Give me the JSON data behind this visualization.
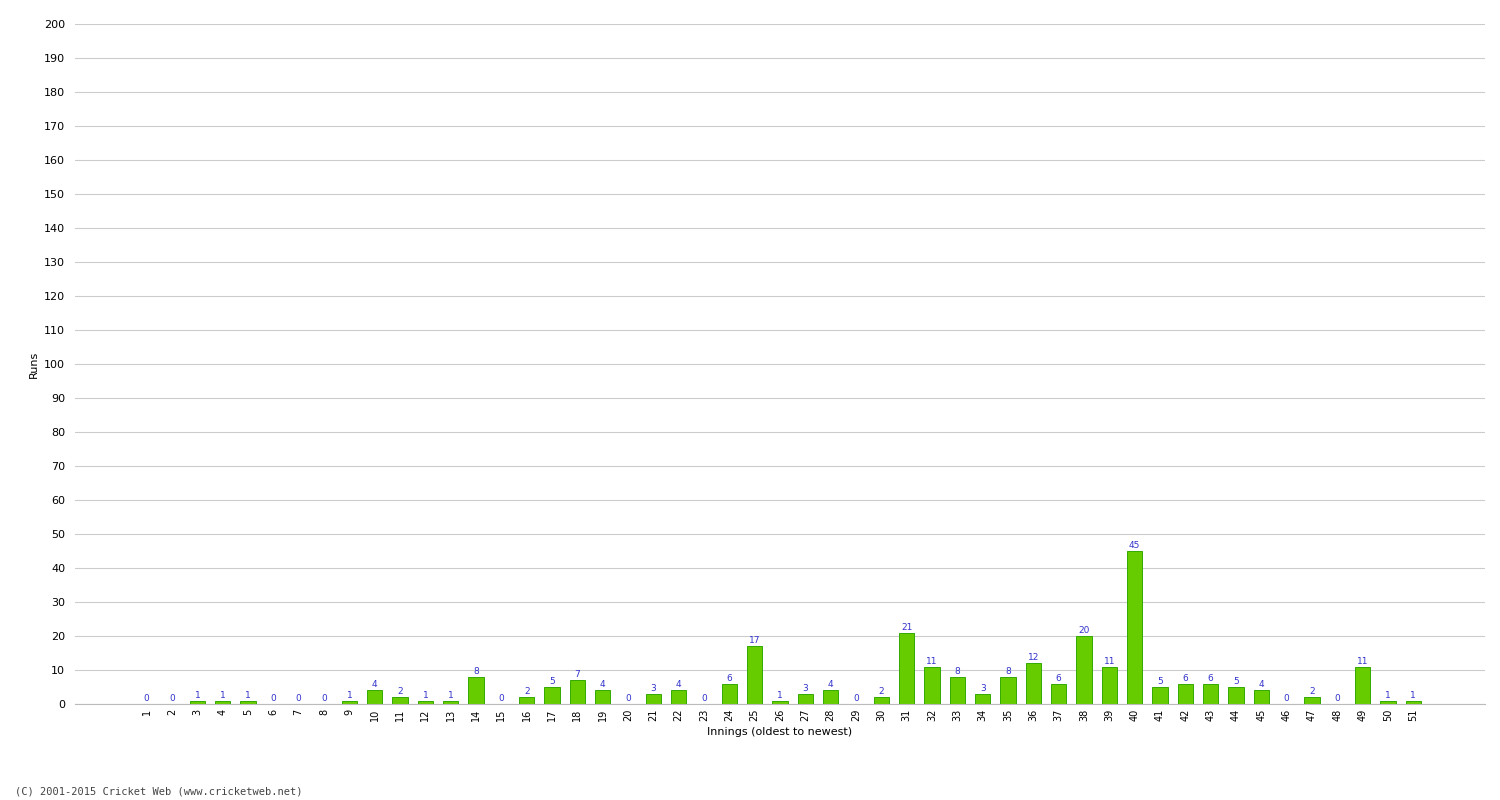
{
  "innings_labels": [
    "1",
    "2",
    "3",
    "4",
    "5",
    "6",
    "7",
    "8",
    "9",
    "10",
    "11",
    "12",
    "13",
    "14",
    "15",
    "16",
    "17",
    "18",
    "19",
    "20",
    "21",
    "22",
    "23",
    "24",
    "25",
    "26",
    "27",
    "28",
    "29",
    "30",
    "31",
    "32",
    "33",
    "34",
    "35",
    "36",
    "37",
    "38",
    "39",
    "40",
    "41",
    "42",
    "43",
    "44",
    "45",
    "46",
    "47",
    "48",
    "49",
    "50",
    "51"
  ],
  "values": [
    0,
    0,
    1,
    1,
    1,
    0,
    0,
    0,
    1,
    4,
    2,
    1,
    1,
    8,
    0,
    2,
    5,
    7,
    4,
    0,
    3,
    4,
    0,
    6,
    17,
    1,
    3,
    4,
    0,
    2,
    21,
    11,
    8,
    3,
    8,
    12,
    6,
    20,
    11,
    45,
    5,
    6,
    6,
    5,
    4,
    0,
    2,
    0,
    11,
    1,
    1
  ],
  "bar_color": "#66cc00",
  "bar_edge_color": "#33aa00",
  "ylabel": "Runs",
  "xlabel": "Innings (oldest to newest)",
  "ylim": [
    0,
    200
  ],
  "yticks": [
    0,
    10,
    20,
    30,
    40,
    50,
    60,
    70,
    80,
    90,
    100,
    110,
    120,
    130,
    140,
    150,
    160,
    170,
    180,
    190,
    200
  ],
  "label_color": "#3333cc",
  "background_color": "#ffffff",
  "plot_bg_color": "#f5f5f5",
  "grid_color": "#cccccc",
  "footer": "(C) 2001-2015 Cricket Web (www.cricketweb.net)"
}
